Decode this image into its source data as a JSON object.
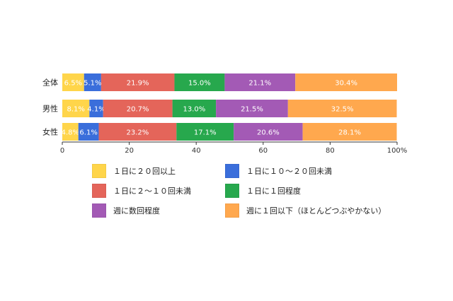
{
  "chart_data": {
    "type": "bar",
    "orientation": "horizontal",
    "stacked": true,
    "categories": [
      "全体",
      "男性",
      "女性"
    ],
    "series": [
      {
        "name": "１日に２０回以上",
        "color": "#FFD54A",
        "values": [
          6.5,
          8.1,
          4.8
        ],
        "labels": [
          "6.5%",
          "8.1%",
          "4.8%"
        ]
      },
      {
        "name": "１日に１０～２０回未満",
        "color": "#3A6EDB",
        "values": [
          5.1,
          4.1,
          6.1
        ],
        "labels": [
          "5.1%",
          "4.1%",
          "6.1%"
        ]
      },
      {
        "name": "１日に２～１０回未満",
        "color": "#E4655A",
        "values": [
          21.9,
          20.7,
          23.2
        ],
        "labels": [
          "21.9%",
          "20.7%",
          "23.2%"
        ]
      },
      {
        "name": "１日に１回程度",
        "color": "#27A84D",
        "values": [
          15.0,
          13.0,
          17.1
        ],
        "labels": [
          "15.0%",
          "13.0%",
          "17.1%"
        ]
      },
      {
        "name": "週に数回程度",
        "color": "#A35AB5",
        "values": [
          21.1,
          21.5,
          20.6
        ],
        "labels": [
          "21.1%",
          "21.5%",
          "20.6%"
        ]
      },
      {
        "name": "週に１回以下（ほとんどつぶやかない）",
        "color": "#FFA84E",
        "values": [
          30.4,
          32.5,
          28.1
        ],
        "labels": [
          "30.4%",
          "32.5%",
          "28.1%"
        ]
      }
    ],
    "xlim": [
      0,
      100
    ],
    "xticks": [
      "0",
      "20",
      "40",
      "60",
      "80",
      "100%"
    ],
    "legend_position": "bottom",
    "grid": false
  }
}
